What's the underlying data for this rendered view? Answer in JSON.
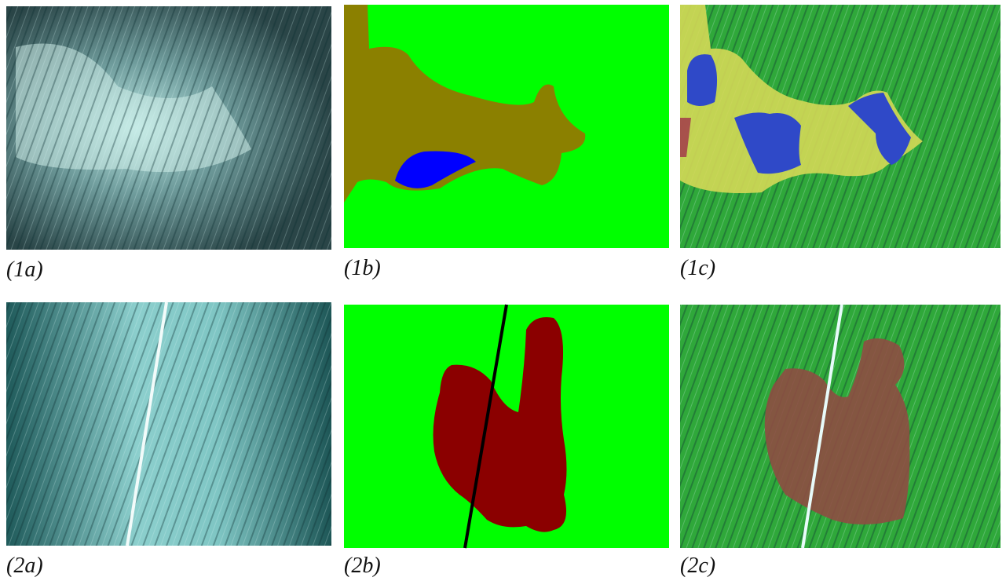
{
  "panels": [
    {
      "caption": "(1a)"
    },
    {
      "caption": "(1b)"
    },
    {
      "caption": "(1c)"
    },
    {
      "caption": "(2a)"
    },
    {
      "caption": "(2b)"
    },
    {
      "caption": "(2c)"
    }
  ]
}
